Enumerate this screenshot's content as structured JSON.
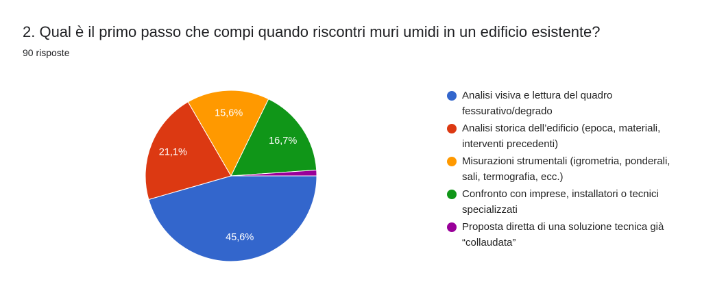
{
  "chart_data": {
    "type": "pie",
    "title": "2. Qual è il primo passo che compi quando riscontri muri umidi in un edificio esistente?",
    "subtitle": "90 risposte",
    "categories": [
      "Analisi visiva e lettura del quadro fessurativo/degrado",
      "Analisi storica dell’edificio (epoca, materiali, interventi precedenti)",
      "Misurazioni strumentali (igrometria, ponderali, sali, termografia, ecc.)",
      "Confronto con imprese, installatori o tecnici specializzati",
      "Proposta diretta di una soluzione tecnica già “collaudata”"
    ],
    "values": [
      45.6,
      21.1,
      15.6,
      16.7,
      1.1
    ],
    "value_labels": [
      "45,6%",
      "21,1%",
      "15,6%",
      "16,7%",
      null
    ],
    "colors": [
      "#3366cc",
      "#dc3912",
      "#ff9900",
      "#109618",
      "#990099"
    ],
    "legend": "right"
  }
}
